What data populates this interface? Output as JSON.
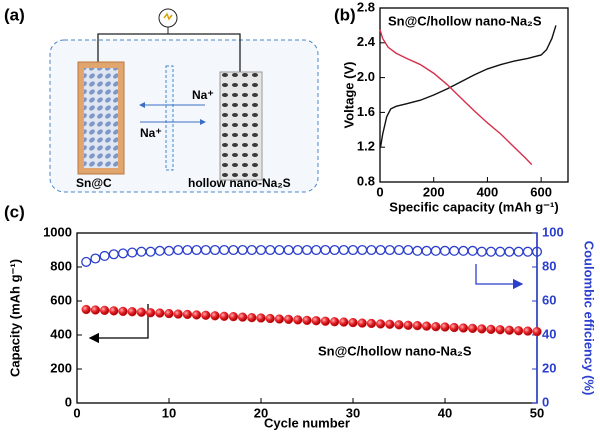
{
  "diagram": {
    "panel_label": "(a)",
    "ion_labels": [
      "Na⁺",
      "Na⁺"
    ],
    "electrode_labels": [
      "Sn@C",
      "hollow nano-Na₂S"
    ]
  },
  "chart_data": [
    {
      "type": "line",
      "panel_label": "(b)",
      "annotation": "Sn@C/hollow nano-Na₂S",
      "x_label": "Specific capacity (mAh g⁻¹)",
      "y_label": "Voltage (V)",
      "xlim": [
        0,
        700
      ],
      "xticks": [
        0,
        200,
        400,
        600
      ],
      "ylim": [
        0.8,
        2.8
      ],
      "yticks": [
        0.8,
        1.2,
        1.6,
        {
          "value": 2,
          "label": "2.0"
        },
        2.4,
        2.8
      ],
      "series": [
        {
          "color": "#111111",
          "x": [
            2,
            10,
            25,
            40,
            60,
            100,
            150,
            200,
            250,
            300,
            350,
            400,
            450,
            500,
            550,
            600,
            620,
            640,
            655
          ],
          "values": [
            1.2,
            1.35,
            1.55,
            1.64,
            1.67,
            1.7,
            1.74,
            1.8,
            1.87,
            1.95,
            2.03,
            2.1,
            2.15,
            2.19,
            2.22,
            2.26,
            2.32,
            2.45,
            2.6
          ]
        },
        {
          "color": "#d6304a",
          "x": [
            0,
            10,
            30,
            60,
            100,
            150,
            200,
            250,
            300,
            350,
            400,
            450,
            500,
            540,
            565
          ],
          "values": [
            2.55,
            2.45,
            2.35,
            2.28,
            2.22,
            2.15,
            2.05,
            1.92,
            1.77,
            1.62,
            1.48,
            1.35,
            1.2,
            1.08,
            1.0
          ]
        }
      ]
    },
    {
      "type": "scatter",
      "panel_label": "(c)",
      "annotation": "Sn@C/hollow nano-Na₂S",
      "x_label": "Cycle number",
      "y_label": "Capacity (mAh g⁻¹)",
      "y2_label": "Coulombic efficiency (%)",
      "y2_color": "#2b3fcc",
      "xlim": [
        0,
        50
      ],
      "xticks": [
        0,
        10,
        20,
        30,
        40,
        50
      ],
      "ylim": [
        0,
        1000
      ],
      "yticks": [
        0,
        200,
        400,
        600,
        800,
        1000
      ],
      "y2lim": [
        0,
        100
      ],
      "y2ticks": [
        0,
        20,
        40,
        60,
        80,
        100
      ],
      "x": [
        1,
        2,
        3,
        4,
        5,
        6,
        7,
        8,
        9,
        10,
        11,
        12,
        13,
        14,
        15,
        16,
        17,
        18,
        19,
        20,
        21,
        22,
        23,
        24,
        25,
        26,
        27,
        28,
        29,
        30,
        31,
        32,
        33,
        34,
        35,
        36,
        37,
        38,
        39,
        40,
        41,
        42,
        43,
        44,
        45,
        46,
        47,
        48,
        49,
        50
      ],
      "series": [
        {
          "color": "#e8242b",
          "filled": true,
          "values": [
            550,
            547,
            545,
            542,
            539,
            537,
            534,
            531,
            529,
            526,
            523,
            521,
            518,
            516,
            513,
            510,
            508,
            505,
            502,
            500,
            497,
            494,
            492,
            489,
            486,
            484,
            481,
            478,
            476,
            473,
            470,
            468,
            465,
            463,
            460,
            457,
            455,
            452,
            449,
            447,
            444,
            441,
            439,
            436,
            433,
            431,
            428,
            425,
            423,
            420
          ]
        },
        {
          "color": "#2b3fcc",
          "filled": false,
          "axis": "y2",
          "values": [
            83,
            85,
            86.5,
            87.5,
            88,
            88.5,
            89,
            89,
            89.5,
            89.5,
            90,
            90,
            90,
            90,
            90,
            90,
            90,
            90,
            90,
            90,
            90,
            90,
            90,
            90,
            90,
            90,
            90,
            90,
            90,
            90,
            90,
            90,
            90,
            90,
            90,
            90,
            89.5,
            89.5,
            89.5,
            89.5,
            89.5,
            89.5,
            89.5,
            89,
            89,
            89,
            89,
            89,
            89,
            89
          ]
        }
      ]
    }
  ]
}
